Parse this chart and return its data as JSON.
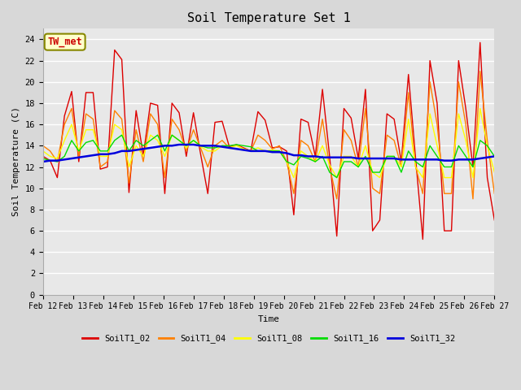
{
  "title": "Soil Temperature Set 1",
  "xlabel": "Time",
  "ylabel": "Soil Temperature (C)",
  "annotation": "TW_met",
  "xlabels": [
    "Feb 12",
    "Feb 13",
    "Feb 14",
    "Feb 15",
    "Feb 16",
    "Feb 17",
    "Feb 18",
    "Feb 19",
    "Feb 20",
    "Feb 21",
    "Feb 22",
    "Feb 23",
    "Feb 24",
    "Feb 25",
    "Feb 26",
    "Feb 27"
  ],
  "ylim": [
    0,
    25
  ],
  "yticks": [
    0,
    2,
    4,
    6,
    8,
    10,
    12,
    14,
    16,
    18,
    20,
    22,
    24
  ],
  "series": {
    "SoilT1_02": {
      "color": "#dd0000",
      "data": [
        13.0,
        12.6,
        11.0,
        16.8,
        19.1,
        12.5,
        19.0,
        19.0,
        11.8,
        12.0,
        23.0,
        22.1,
        9.6,
        17.3,
        13.1,
        18.0,
        17.8,
        9.5,
        18.0,
        17.1,
        13.0,
        17.1,
        13.2,
        9.5,
        16.2,
        16.3,
        13.9,
        14.1,
        13.8,
        13.5,
        17.2,
        16.4,
        13.8,
        13.9,
        13.5,
        7.5,
        16.5,
        16.2,
        13.0,
        19.3,
        13.0,
        5.5,
        17.5,
        16.6,
        12.8,
        19.3,
        6.0,
        7.0,
        17.0,
        16.5,
        12.5,
        20.7,
        12.8,
        5.2,
        22.0,
        18.0,
        6.0,
        6.0,
        22.0,
        17.5,
        12.0,
        23.7,
        11.0,
        7.0
      ]
    },
    "SoilT1_04": {
      "color": "#ff8000",
      "data": [
        14.0,
        13.5,
        12.5,
        16.0,
        17.5,
        13.0,
        17.0,
        16.5,
        12.0,
        12.5,
        17.3,
        16.5,
        10.5,
        15.5,
        12.5,
        17.0,
        16.0,
        11.0,
        16.5,
        15.5,
        13.5,
        15.5,
        13.8,
        12.0,
        14.0,
        14.5,
        13.8,
        14.1,
        13.7,
        13.5,
        15.0,
        14.5,
        13.7,
        14.0,
        12.5,
        9.5,
        14.5,
        14.0,
        12.5,
        16.5,
        12.0,
        9.0,
        15.5,
        14.5,
        12.0,
        17.5,
        10.0,
        9.5,
        15.0,
        14.5,
        12.0,
        19.0,
        12.0,
        9.5,
        20.0,
        16.0,
        9.5,
        9.5,
        20.0,
        16.0,
        9.0,
        21.0,
        14.5,
        9.5
      ]
    },
    "SoilT1_08": {
      "color": "#ffff00",
      "data": [
        13.5,
        13.0,
        12.8,
        14.5,
        16.0,
        13.5,
        15.5,
        15.5,
        13.0,
        13.0,
        16.0,
        15.5,
        12.0,
        14.0,
        13.0,
        15.0,
        14.5,
        13.0,
        15.0,
        14.5,
        13.8,
        14.5,
        13.9,
        13.5,
        13.5,
        14.0,
        13.8,
        14.0,
        13.7,
        13.5,
        13.8,
        13.5,
        13.6,
        13.5,
        12.5,
        11.0,
        13.5,
        13.0,
        12.5,
        14.0,
        12.2,
        11.0,
        13.0,
        13.0,
        12.0,
        14.0,
        11.5,
        11.0,
        13.0,
        13.0,
        12.0,
        16.5,
        12.0,
        11.0,
        17.0,
        14.0,
        11.0,
        11.0,
        17.0,
        14.5,
        11.0,
        17.5,
        14.0,
        11.5
      ]
    },
    "SoilT1_16": {
      "color": "#00dd00",
      "data": [
        12.8,
        12.6,
        12.5,
        13.0,
        14.5,
        13.5,
        14.3,
        14.5,
        13.5,
        13.5,
        14.5,
        15.0,
        13.5,
        14.5,
        14.0,
        14.5,
        15.0,
        13.5,
        15.0,
        14.5,
        14.0,
        14.5,
        14.0,
        13.8,
        13.8,
        14.0,
        14.0,
        14.1,
        14.0,
        13.9,
        13.5,
        13.5,
        13.5,
        13.5,
        12.5,
        12.2,
        13.0,
        12.8,
        12.5,
        13.0,
        11.5,
        11.0,
        12.5,
        12.5,
        12.0,
        13.0,
        11.5,
        11.5,
        13.0,
        13.0,
        11.5,
        13.5,
        12.5,
        12.0,
        14.0,
        13.0,
        12.0,
        12.0,
        14.0,
        13.0,
        12.0,
        14.5,
        14.0,
        13.0
      ]
    },
    "SoilT1_32": {
      "color": "#0000dd",
      "data": [
        12.5,
        12.6,
        12.6,
        12.7,
        12.8,
        12.9,
        13.0,
        13.1,
        13.2,
        13.2,
        13.3,
        13.5,
        13.5,
        13.6,
        13.7,
        13.8,
        13.9,
        14.0,
        14.0,
        14.1,
        14.1,
        14.1,
        14.0,
        14.0,
        14.0,
        13.9,
        13.8,
        13.7,
        13.6,
        13.5,
        13.5,
        13.5,
        13.4,
        13.4,
        13.3,
        13.1,
        13.1,
        13.0,
        13.0,
        12.9,
        12.9,
        12.9,
        12.9,
        12.9,
        12.8,
        12.8,
        12.8,
        12.8,
        12.8,
        12.8,
        12.7,
        12.7,
        12.7,
        12.7,
        12.7,
        12.7,
        12.6,
        12.6,
        12.7,
        12.7,
        12.7,
        12.8,
        12.9,
        13.0
      ]
    }
  },
  "plot_bg": "#e8e8e8",
  "fig_bg": "#d8d8d8",
  "grid_color": "#ffffff",
  "n_points": 64,
  "x_ticks_count": 16,
  "legend_entries": [
    "SoilT1_02",
    "SoilT1_04",
    "SoilT1_08",
    "SoilT1_16",
    "SoilT1_32"
  ]
}
